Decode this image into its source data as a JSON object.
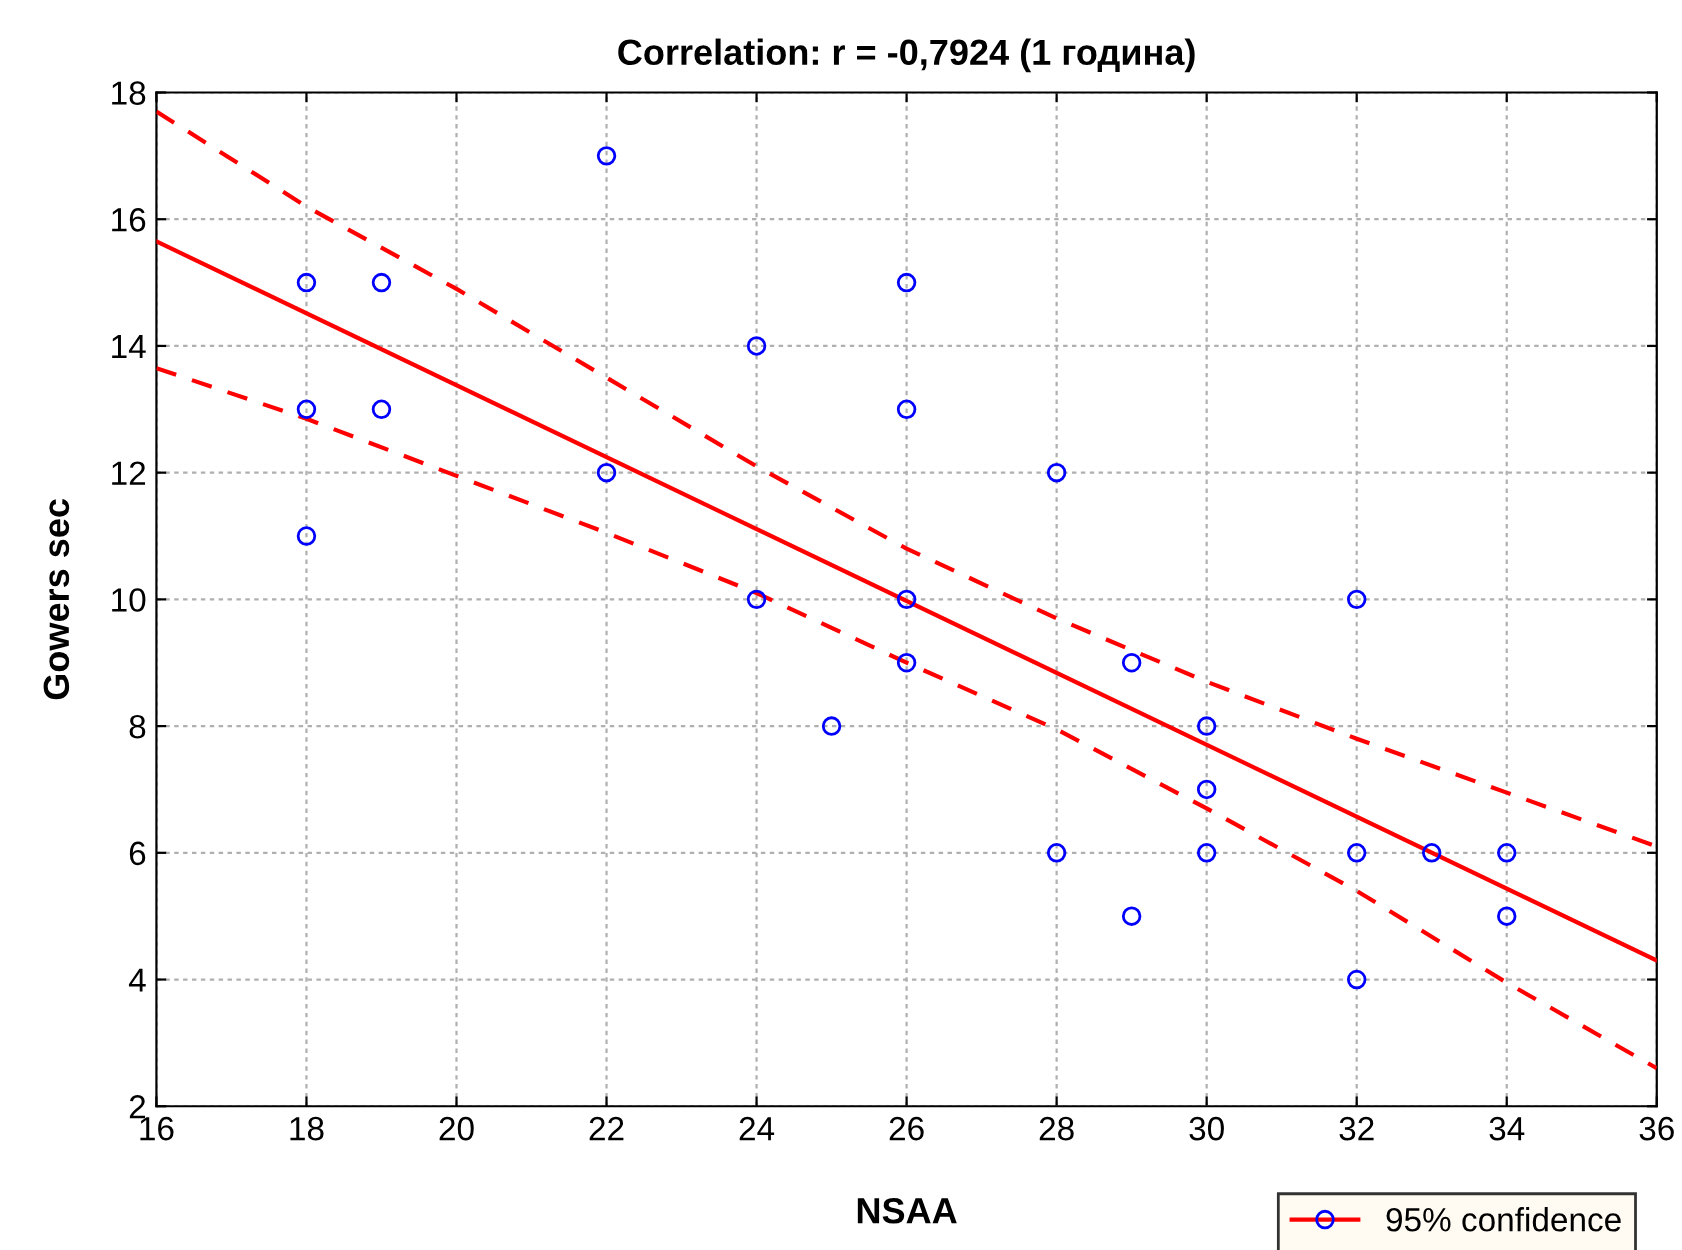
{
  "chart_data": {
    "type": "scatter",
    "title": "Correlation: r = -0,7924 (1 година)",
    "xlabel": "NSAA",
    "ylabel": "Gowers sec",
    "xlim": [
      16,
      36
    ],
    "xticks": [
      16,
      18,
      20,
      22,
      24,
      26,
      28,
      30,
      32,
      34,
      36
    ],
    "ylim": [
      2,
      18
    ],
    "yticks": [
      2,
      4,
      6,
      8,
      10,
      12,
      14,
      16,
      18
    ],
    "grid": true,
    "legend": "bottom right",
    "series": [
      {
        "color": "#0000ff",
        "marker": "circle",
        "x": [
          18,
          18,
          18,
          19,
          19,
          22,
          22,
          24,
          24,
          25,
          26,
          26,
          26,
          26,
          28,
          28,
          29,
          29,
          30,
          30,
          30,
          32,
          32,
          32,
          33,
          34,
          34
        ],
        "values": [
          15,
          13,
          11,
          15,
          13,
          17,
          12,
          14,
          10,
          8,
          15,
          13,
          10,
          9,
          12,
          6,
          9,
          5,
          8,
          7,
          6,
          10,
          6,
          4,
          6,
          6,
          5
        ]
      },
      {
        "type": "line",
        "name": "95% confidence",
        "color": "#ff0000",
        "line_style": "solid",
        "x": [
          16,
          36
        ],
        "values": [
          15.65,
          4.3
        ]
      },
      {
        "type": "line",
        "color": "#ff0000",
        "line_style": "dashed",
        "x": [
          16,
          18,
          20,
          22,
          24,
          26,
          28,
          30,
          32,
          34,
          36
        ],
        "values": [
          13.65,
          12.85,
          11.95,
          11.05,
          10.1,
          9.0,
          7.95,
          6.7,
          5.4,
          3.95,
          2.6
        ]
      },
      {
        "type": "line",
        "color": "#ff0000",
        "line_style": "dashed",
        "x": [
          16,
          18,
          20,
          22,
          24,
          26,
          28,
          30,
          32,
          34,
          36
        ],
        "values": [
          17.7,
          16.2,
          14.9,
          13.5,
          12.1,
          10.8,
          9.7,
          8.7,
          7.8,
          6.95,
          6.1
        ]
      }
    ]
  }
}
